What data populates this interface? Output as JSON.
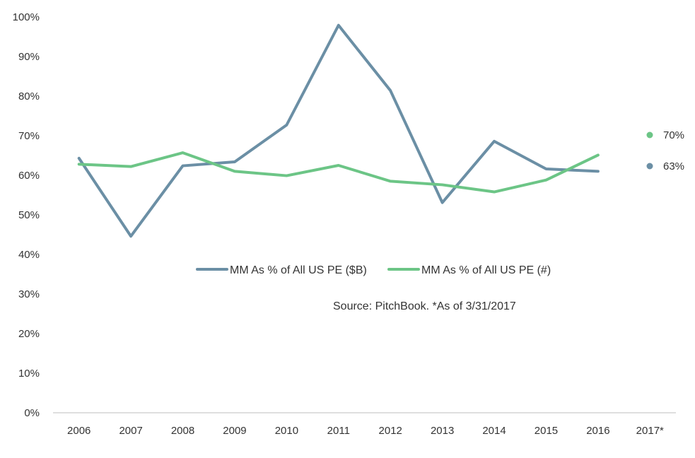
{
  "chart_data": {
    "type": "line",
    "title": "",
    "xlabel": "",
    "ylabel": "",
    "categories": [
      "2006",
      "2007",
      "2008",
      "2009",
      "2010",
      "2011",
      "2012",
      "2013",
      "2014",
      "2015",
      "2016",
      "2017*"
    ],
    "ylim": [
      0,
      100
    ],
    "yticks": [
      "0%",
      "10%",
      "20%",
      "30%",
      "40%",
      "50%",
      "60%",
      "70%",
      "80%",
      "90%",
      "100%"
    ],
    "series": [
      {
        "name": "MM As % of All US PE ($B)",
        "color": "#6b8fa5",
        "values": [
          64.3,
          44.6,
          62.4,
          63.4,
          72.7,
          97.9,
          81.4,
          53.1,
          68.6,
          61.6,
          61.0,
          null
        ]
      },
      {
        "name": "MM As % of All US PE (#)",
        "color": "#6cc586",
        "values": [
          62.8,
          62.2,
          65.7,
          61.0,
          59.9,
          62.5,
          58.5,
          57.6,
          55.8,
          58.8,
          65.1,
          null
        ]
      }
    ],
    "point_2017": [
      {
        "series": "MM As % of All US PE (#)",
        "label": "70%",
        "color": "#6cc586"
      },
      {
        "series": "MM As % of All US PE ($B)",
        "label": "63%",
        "color": "#6b8fa5"
      }
    ],
    "legend_position": "center",
    "grid": false,
    "source": "Source: PitchBook. *As of 3/31/2017"
  }
}
